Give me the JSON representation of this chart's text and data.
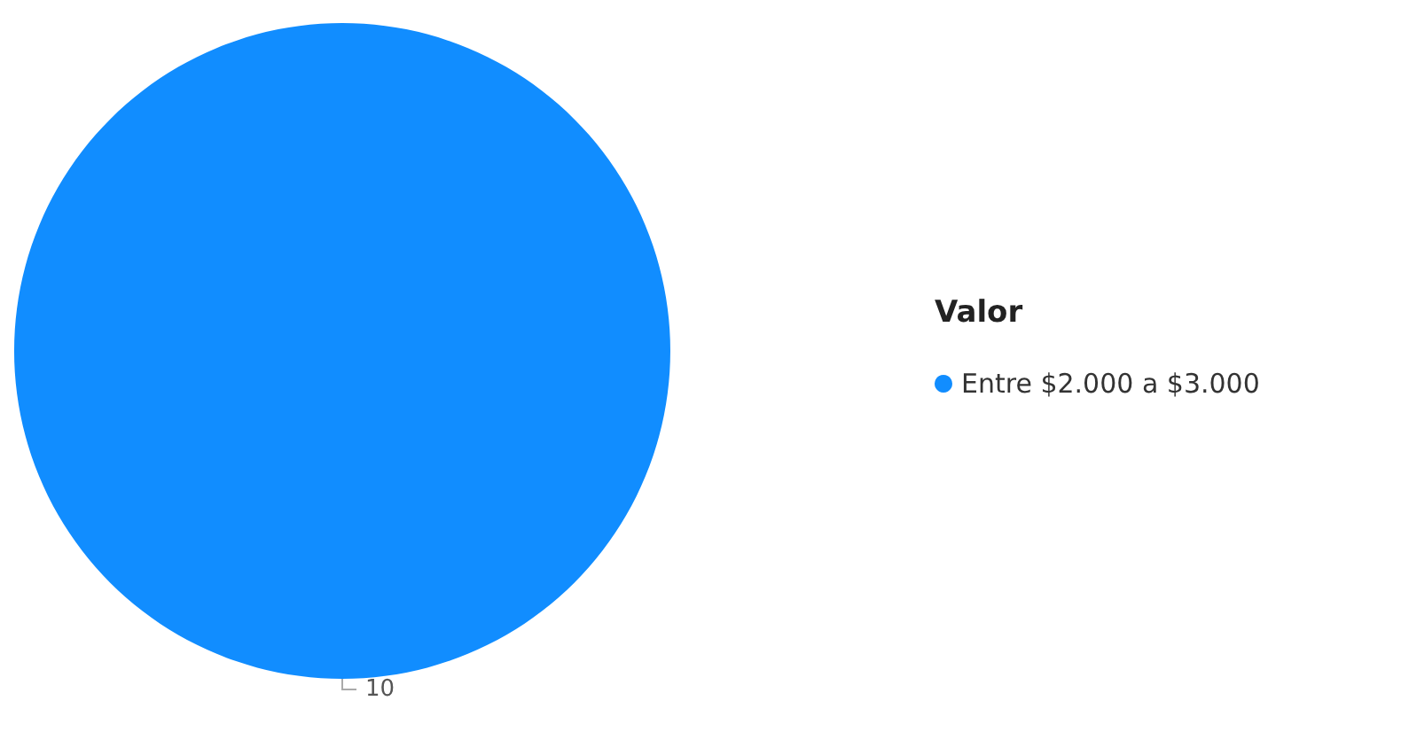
{
  "chart_data": {
    "type": "pie",
    "legend_title": "Valor",
    "categories": [
      "Entre $2.000 a $3.000"
    ],
    "values": [
      10
    ],
    "colors": [
      "#118dff"
    ],
    "data_labels": true,
    "legend": "right"
  }
}
